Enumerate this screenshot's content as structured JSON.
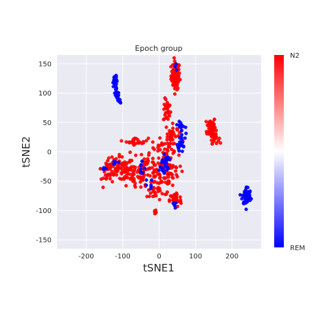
{
  "chart_data": {
    "type": "scatter",
    "title": "Epoch group",
    "xlabel": "tSNE1",
    "ylabel": "tSNE2",
    "xlim": [
      -280,
      280
    ],
    "ylim": [
      -165,
      165
    ],
    "xticks": [
      -200,
      -100,
      0,
      100,
      200
    ],
    "yticks": [
      -150,
      -100,
      -50,
      0,
      50,
      100,
      150
    ],
    "grid": true,
    "plot_background": "#eaeaf2",
    "grid_color": "#ffffff",
    "colorbar": {
      "top_label": "N2",
      "bottom_label": "REM",
      "top_color": "#ff0000",
      "middle_color": "#ffffff",
      "bottom_color": "#0000ff"
    },
    "series": [
      {
        "color": "#ff0000",
        "clusters": [
          {
            "cx": 45,
            "cy": 130,
            "sx": 6,
            "sy": 12,
            "n": 90
          },
          {
            "cx": 22,
            "cy": 70,
            "sx": 5,
            "sy": 10,
            "n": 30
          },
          {
            "cx": 143,
            "cy": 42,
            "sx": 6,
            "sy": 9,
            "n": 55
          },
          {
            "cx": 152,
            "cy": 25,
            "sx": 6,
            "sy": 5,
            "n": 25
          },
          {
            "cx": 38,
            "cy": 35,
            "sx": 10,
            "sy": 6,
            "n": 15
          },
          {
            "cx": 32,
            "cy": 20,
            "sx": 12,
            "sy": 7,
            "n": 20
          },
          {
            "cx": -60,
            "cy": 18,
            "sx": 15,
            "sy": 3,
            "n": 25
          },
          {
            "cx": -5,
            "cy": 5,
            "sx": 8,
            "sy": 8,
            "n": 10
          },
          {
            "cx": 25,
            "cy": 0,
            "sx": 10,
            "sy": 10,
            "n": 25
          },
          {
            "cx": -115,
            "cy": -28,
            "sx": 22,
            "sy": 10,
            "n": 70
          },
          {
            "cx": -70,
            "cy": -40,
            "sx": 22,
            "sy": 12,
            "n": 60
          },
          {
            "cx": -140,
            "cy": -35,
            "sx": 6,
            "sy": 10,
            "n": 20
          },
          {
            "cx": -30,
            "cy": -20,
            "sx": 12,
            "sy": 14,
            "n": 30
          },
          {
            "cx": 0,
            "cy": -45,
            "sx": 20,
            "sy": 15,
            "n": 80
          },
          {
            "cx": 30,
            "cy": -30,
            "sx": 12,
            "sy": 12,
            "n": 30
          },
          {
            "cx": 45,
            "cy": -82,
            "sx": 8,
            "sy": 6,
            "n": 40
          },
          {
            "cx": -10,
            "cy": -102,
            "sx": 2,
            "sy": 2,
            "n": 6
          },
          {
            "cx": -10,
            "cy": -72,
            "sx": 4,
            "sy": 4,
            "n": 6
          }
        ]
      },
      {
        "color": "#0000ff",
        "clusters": [
          {
            "cx": 240,
            "cy": -75,
            "sx": 6,
            "sy": 8,
            "n": 60
          },
          {
            "cx": 62,
            "cy": 30,
            "sx": 5,
            "sy": 15,
            "n": 35
          },
          {
            "cx": 10,
            "cy": -25,
            "sx": 10,
            "sy": 10,
            "n": 20
          },
          {
            "cx": -50,
            "cy": -30,
            "sx": 5,
            "sy": 6,
            "n": 8
          },
          {
            "cx": -30,
            "cy": -55,
            "sx": 6,
            "sy": 4,
            "n": 6
          },
          {
            "cx": -125,
            "cy": -20,
            "sx": 6,
            "sy": 5,
            "n": 5
          },
          {
            "cx": -150,
            "cy": -30,
            "sx": 3,
            "sy": 3,
            "n": 3
          },
          {
            "cx": 20,
            "cy": -10,
            "sx": 5,
            "sy": 4,
            "n": 6
          },
          {
            "cx": 45,
            "cy": 145,
            "sx": 3,
            "sy": 3,
            "n": 3
          },
          {
            "cx": 40,
            "cy": -90,
            "sx": 3,
            "sy": 3,
            "n": 5
          }
        ],
        "arcs": [
          {
            "x0": -120,
            "y0": 130,
            "x1": -105,
            "y1": 82,
            "n": 55,
            "bend": -6,
            "jitter": 3
          }
        ]
      }
    ]
  }
}
